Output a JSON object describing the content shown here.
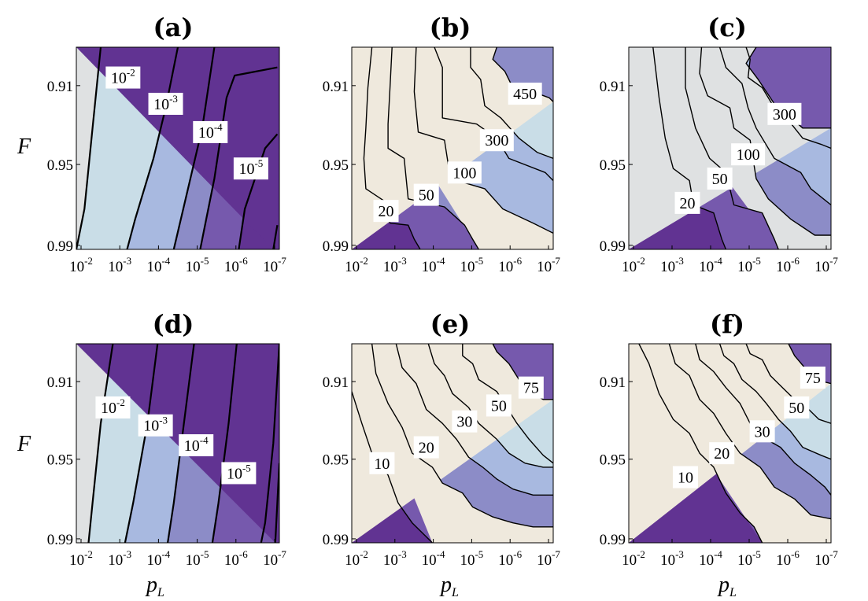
{
  "figure": {
    "ylabel": "F",
    "xlabel_main": "p",
    "xlabel_sub": "L"
  },
  "colors": {
    "level_colors": [
      "#e3e2e1",
      "#c4d8e8",
      "#a8b9e0",
      "#8c8cc7",
      "#7659ad",
      "#613392"
    ],
    "light_fill": "#c9dde7",
    "beige_fill": "#efe9dd",
    "grey_fill": "#dfe1e2",
    "contour_line": "#000000"
  },
  "chart_data": [
    {
      "panel": "a",
      "title": "(a)",
      "type": "contour",
      "xticks": [
        {
          "base": "10",
          "exp": "-2"
        },
        {
          "base": "10",
          "exp": "-3"
        },
        {
          "base": "10",
          "exp": "-4"
        },
        {
          "base": "10",
          "exp": "-5"
        },
        {
          "base": "10",
          "exp": "-6"
        },
        {
          "base": "10",
          "exp": "-7"
        }
      ],
      "yticks": [
        "0.91",
        "0.95",
        "0.99"
      ],
      "contour_labels": [
        {
          "base": "10",
          "exp": "-2"
        },
        {
          "base": "10",
          "exp": "-3"
        },
        {
          "base": "10",
          "exp": "-4"
        },
        {
          "base": "10",
          "exp": "-5"
        }
      ]
    },
    {
      "panel": "b",
      "title": "(b)",
      "type": "contour",
      "xticks": [
        {
          "base": "10",
          "exp": "-2"
        },
        {
          "base": "10",
          "exp": "-3"
        },
        {
          "base": "10",
          "exp": "-4"
        },
        {
          "base": "10",
          "exp": "-5"
        },
        {
          "base": "10",
          "exp": "-6"
        },
        {
          "base": "10",
          "exp": "-7"
        }
      ],
      "yticks": [
        "0.91",
        "0.95",
        "0.99"
      ],
      "contour_labels": [
        {
          "base": "450",
          "exp": ""
        },
        {
          "base": "300",
          "exp": ""
        },
        {
          "base": "100",
          "exp": ""
        },
        {
          "base": "50",
          "exp": ""
        },
        {
          "base": "20",
          "exp": ""
        }
      ]
    },
    {
      "panel": "c",
      "title": "(c)",
      "type": "contour",
      "xticks": [
        {
          "base": "10",
          "exp": "-2"
        },
        {
          "base": "10",
          "exp": "-3"
        },
        {
          "base": "10",
          "exp": "-4"
        },
        {
          "base": "10",
          "exp": "-5"
        },
        {
          "base": "10",
          "exp": "-6"
        },
        {
          "base": "10",
          "exp": "-7"
        }
      ],
      "yticks": [
        "0.91",
        "0.95",
        "0.99"
      ],
      "contour_labels": [
        {
          "base": "300",
          "exp": ""
        },
        {
          "base": "100",
          "exp": ""
        },
        {
          "base": "50",
          "exp": ""
        },
        {
          "base": "20",
          "exp": ""
        }
      ]
    },
    {
      "panel": "d",
      "title": "(d)",
      "type": "contour",
      "xticks": [
        {
          "base": "10",
          "exp": "-2"
        },
        {
          "base": "10",
          "exp": "-3"
        },
        {
          "base": "10",
          "exp": "-4"
        },
        {
          "base": "10",
          "exp": "-5"
        },
        {
          "base": "10",
          "exp": "-6"
        },
        {
          "base": "10",
          "exp": "-7"
        }
      ],
      "yticks": [
        "0.91",
        "0.95",
        "0.99"
      ],
      "contour_labels": [
        {
          "base": "10",
          "exp": "-2"
        },
        {
          "base": "10",
          "exp": "-3"
        },
        {
          "base": "10",
          "exp": "-4"
        },
        {
          "base": "10",
          "exp": "-5"
        }
      ]
    },
    {
      "panel": "e",
      "title": "(e)",
      "type": "contour",
      "xticks": [
        {
          "base": "10",
          "exp": "-2"
        },
        {
          "base": "10",
          "exp": "-3"
        },
        {
          "base": "10",
          "exp": "-4"
        },
        {
          "base": "10",
          "exp": "-5"
        },
        {
          "base": "10",
          "exp": "-6"
        },
        {
          "base": "10",
          "exp": "-7"
        }
      ],
      "yticks": [
        "0.91",
        "0.95",
        "0.99"
      ],
      "contour_labels": [
        {
          "base": "75",
          "exp": ""
        },
        {
          "base": "50",
          "exp": ""
        },
        {
          "base": "30",
          "exp": ""
        },
        {
          "base": "20",
          "exp": ""
        },
        {
          "base": "10",
          "exp": ""
        }
      ]
    },
    {
      "panel": "f",
      "title": "(f)",
      "type": "contour",
      "xticks": [
        {
          "base": "10",
          "exp": "-2"
        },
        {
          "base": "10",
          "exp": "-3"
        },
        {
          "base": "10",
          "exp": "-4"
        },
        {
          "base": "10",
          "exp": "-5"
        },
        {
          "base": "10",
          "exp": "-6"
        },
        {
          "base": "10",
          "exp": "-7"
        }
      ],
      "yticks": [
        "0.91",
        "0.95",
        "0.99"
      ],
      "contour_labels": [
        {
          "base": "75",
          "exp": ""
        },
        {
          "base": "50",
          "exp": ""
        },
        {
          "base": "30",
          "exp": ""
        },
        {
          "base": "20",
          "exp": ""
        },
        {
          "base": "10",
          "exp": ""
        }
      ]
    }
  ]
}
